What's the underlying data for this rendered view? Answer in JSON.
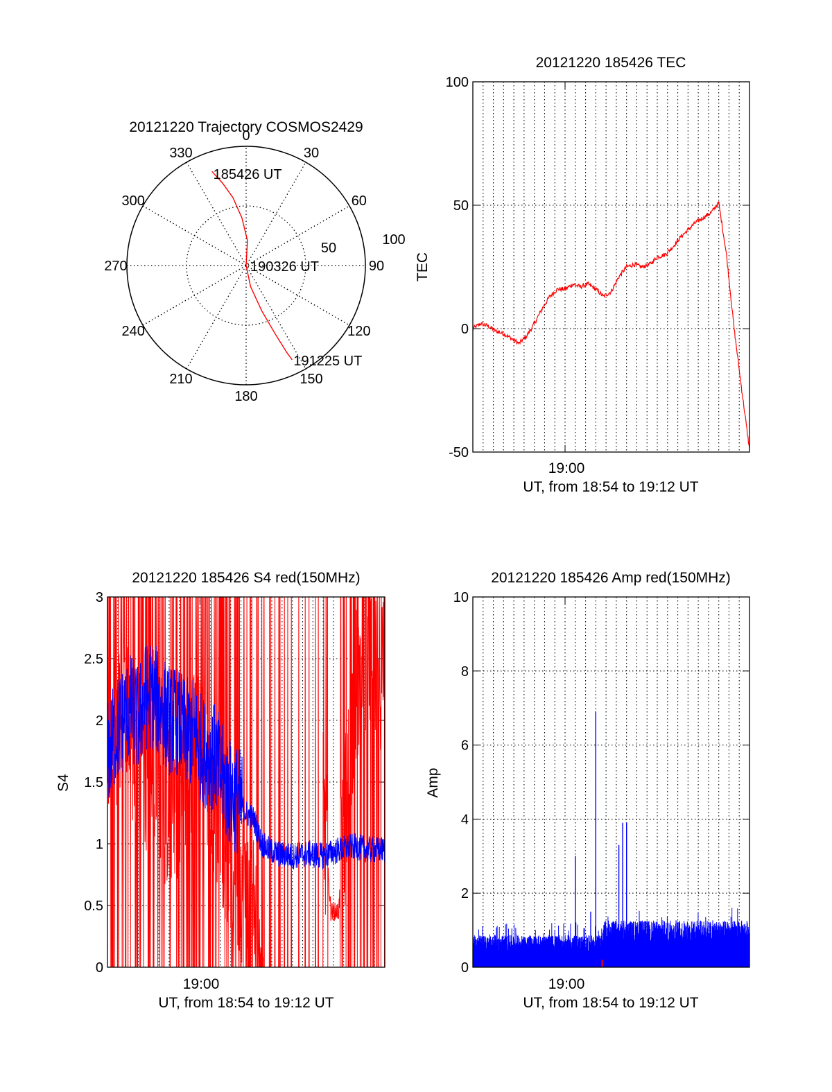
{
  "chart_data": [
    {
      "type": "polar",
      "title": "20121220 Trajectory COSMOS2429",
      "angle_labels": [
        "0",
        "30",
        "60",
        "90",
        "120",
        "150",
        "180",
        "210",
        "240",
        "270",
        "300",
        "330"
      ],
      "radial_labels": [
        "50",
        "100"
      ],
      "rlim": [
        0,
        100
      ],
      "grid": true,
      "colors": {
        "series": "#ff0000"
      },
      "series": [
        {
          "points": [
            [
              340,
              84
            ],
            [
              344,
              72
            ],
            [
              349,
              58
            ],
            [
              355,
              40
            ],
            [
              3,
              21
            ],
            [
              90,
              0
            ],
            [
              168,
              18
            ],
            [
              161,
              40
            ],
            [
              157,
              62
            ],
            [
              155,
              80
            ],
            [
              154,
              88
            ]
          ],
          "annotations": [
            {
              "text": "185426 UT",
              "az": 340,
              "r": 84
            },
            {
              "text": "190326 UT",
              "az": 90,
              "r": 0
            },
            {
              "text": "191225 UT",
              "az": 154,
              "r": 88
            }
          ]
        }
      ]
    },
    {
      "type": "line",
      "title": "20121220 185426 TEC",
      "ylabel": "TEC",
      "xlabel": "UT, from 18:54 to 19:12 UT",
      "x_tick_label": "19:00",
      "y_ticks": [
        "-50",
        "0",
        "50",
        "100"
      ],
      "xlim": [
        "18:54",
        "19:12"
      ],
      "ylim": [
        -50,
        100
      ],
      "grid": true,
      "colors": {
        "series": "#ff0000"
      },
      "series": [
        {
          "x": [
            "18:54:00",
            "18:54:30",
            "18:55:00",
            "18:55:30",
            "18:56:00",
            "18:56:30",
            "18:57:00",
            "18:57:30",
            "18:58:00",
            "18:58:30",
            "18:59:00",
            "18:59:30",
            "19:00:00",
            "19:00:30",
            "19:01:00",
            "19:01:30",
            "19:02:00",
            "19:02:30",
            "19:03:00",
            "19:03:30",
            "19:04:00",
            "19:04:30",
            "19:05:00",
            "19:05:30",
            "19:06:00",
            "19:06:30",
            "19:07:00",
            "19:07:30",
            "19:08:00",
            "19:08:30",
            "19:09:00",
            "19:09:30",
            "19:10:00",
            "19:10:30",
            "19:11:00",
            "19:11:30",
            "19:12:00"
          ],
          "y": [
            0,
            2,
            1,
            -1,
            -2,
            -4,
            -6,
            -3,
            2,
            8,
            13,
            16,
            16,
            18,
            17,
            18,
            16,
            13,
            15,
            21,
            25,
            26,
            25,
            26,
            29,
            30,
            33,
            37,
            40,
            43,
            45,
            47,
            51,
            30,
            0,
            -25,
            -49
          ]
        }
      ]
    },
    {
      "type": "line",
      "title": "20121220 185426 S4 red(150MHz)",
      "ylabel": "S4",
      "xlabel": "UT, from 18:54 to 19:12 UT",
      "x_tick_label": "19:00",
      "y_ticks": [
        "0",
        "0.5",
        "1",
        "1.5",
        "2",
        "2.5",
        "3"
      ],
      "xlim": [
        "18:54",
        "19:12"
      ],
      "ylim": [
        0,
        3
      ],
      "grid": true,
      "colors": {
        "red": "#ff0000",
        "blue": "#0000ff"
      },
      "series": [
        {
          "color": "red",
          "x": [
            "18:54:00",
            "18:55:00",
            "18:56:00",
            "18:57:00",
            "18:58:00",
            "18:59:00",
            "19:00:00",
            "19:01:00",
            "19:02:00",
            "19:03:00",
            "19:04:00",
            "19:05:00",
            "19:06:00",
            "19:07:00",
            "19:08:00",
            "19:08:30",
            "19:09:00",
            "19:10:00",
            "19:11:00",
            "19:12:00"
          ],
          "y": [
            1.6,
            2.0,
            1.8,
            1.5,
            1.3,
            1.5,
            1.9,
            1.4,
            0.9,
            0.6,
            0.3,
            0.2,
            0.1,
            0.1,
            1.3,
            0.45,
            0.45,
            2.2,
            2.6,
            2.4
          ]
        },
        {
          "color": "blue",
          "x": [
            "18:54:00",
            "18:54:30",
            "18:55:00",
            "18:55:30",
            "18:56:00",
            "18:56:30",
            "18:57:00",
            "18:57:30",
            "18:58:00",
            "18:58:30",
            "18:59:00",
            "18:59:30",
            "19:00:00",
            "19:00:30",
            "19:01:00",
            "19:01:30",
            "19:02:00",
            "19:02:30",
            "19:03:00",
            "19:03:30",
            "19:04:00",
            "19:04:30",
            "19:05:00",
            "19:06:00",
            "19:07:00",
            "19:08:00",
            "19:09:00",
            "19:10:00",
            "19:11:00",
            "19:12:00"
          ],
          "y": [
            1.7,
            1.9,
            2.0,
            2.1,
            2.0,
            2.2,
            2.2,
            2.1,
            2.0,
            2.0,
            1.9,
            1.9,
            1.8,
            1.7,
            1.7,
            1.5,
            1.4,
            1.35,
            1.25,
            1.2,
            1.0,
            0.95,
            0.92,
            0.9,
            0.92,
            0.9,
            0.95,
            0.98,
            0.95,
            0.95
          ]
        }
      ]
    },
    {
      "type": "line",
      "title": "20121220 185426 Amp red(150MHz)",
      "ylabel": "Amp",
      "xlabel": "UT, from 18:54 to 19:12 UT",
      "x_tick_label": "19:00",
      "y_ticks": [
        "0",
        "2",
        "4",
        "6",
        "8",
        "10"
      ],
      "xlim": [
        "18:54",
        "19:12"
      ],
      "ylim": [
        0,
        10
      ],
      "grid": true,
      "colors": {
        "blue": "#0000ff",
        "red": "#ff0000"
      },
      "series": [
        {
          "color": "blue",
          "x": [
            "18:54:00",
            "18:55:00",
            "18:56:00",
            "18:57:00",
            "18:58:00",
            "18:59:00",
            "19:00:00",
            "19:00:40",
            "19:01:00",
            "19:01:40",
            "19:02:00",
            "19:02:20",
            "19:03:00",
            "19:03:30",
            "19:03:45",
            "19:04:00",
            "19:05:00",
            "19:06:00",
            "19:07:00",
            "19:08:00",
            "19:09:00",
            "19:10:00",
            "19:11:00",
            "19:12:00"
          ],
          "y": [
            0.7,
            0.8,
            0.75,
            0.7,
            0.8,
            0.75,
            0.8,
            3.0,
            0.8,
            1.5,
            6.9,
            0.9,
            1.0,
            3.3,
            3.9,
            1.2,
            1.1,
            1.1,
            1.2,
            1.1,
            1.2,
            1.2,
            1.1,
            1.2
          ]
        },
        {
          "color": "red",
          "x": [
            "19:02:25"
          ],
          "y": [
            0.2
          ]
        }
      ]
    }
  ]
}
